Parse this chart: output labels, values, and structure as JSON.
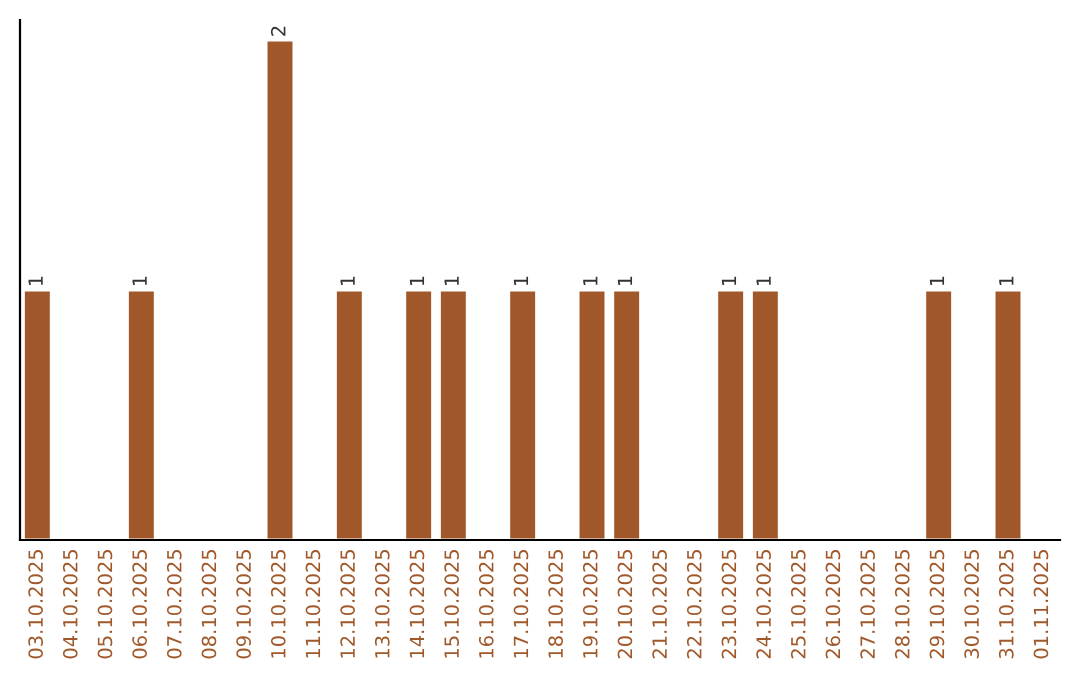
{
  "chart_data": {
    "type": "bar",
    "categories": [
      "03.10.2025",
      "04.10.2025",
      "05.10.2025",
      "06.10.2025",
      "07.10.2025",
      "08.10.2025",
      "09.10.2025",
      "10.10.2025",
      "11.10.2025",
      "12.10.2025",
      "13.10.2025",
      "14.10.2025",
      "15.10.2025",
      "16.10.2025",
      "17.10.2025",
      "18.10.2025",
      "19.10.2025",
      "20.10.2025",
      "21.10.2025",
      "22.10.2025",
      "23.10.2025",
      "24.10.2025",
      "25.10.2025",
      "26.10.2025",
      "27.10.2025",
      "28.10.2025",
      "29.10.2025",
      "30.10.2025",
      "31.10.2025",
      "01.11.2025"
    ],
    "values": [
      1,
      null,
      null,
      1,
      null,
      null,
      null,
      2,
      null,
      1,
      null,
      1,
      1,
      null,
      1,
      null,
      1,
      1,
      null,
      null,
      1,
      1,
      null,
      null,
      null,
      null,
      1,
      null,
      1,
      null
    ],
    "color": "#a0582a",
    "data_labels": true,
    "tick_labels": "x",
    "grid": false,
    "legend": false
  }
}
